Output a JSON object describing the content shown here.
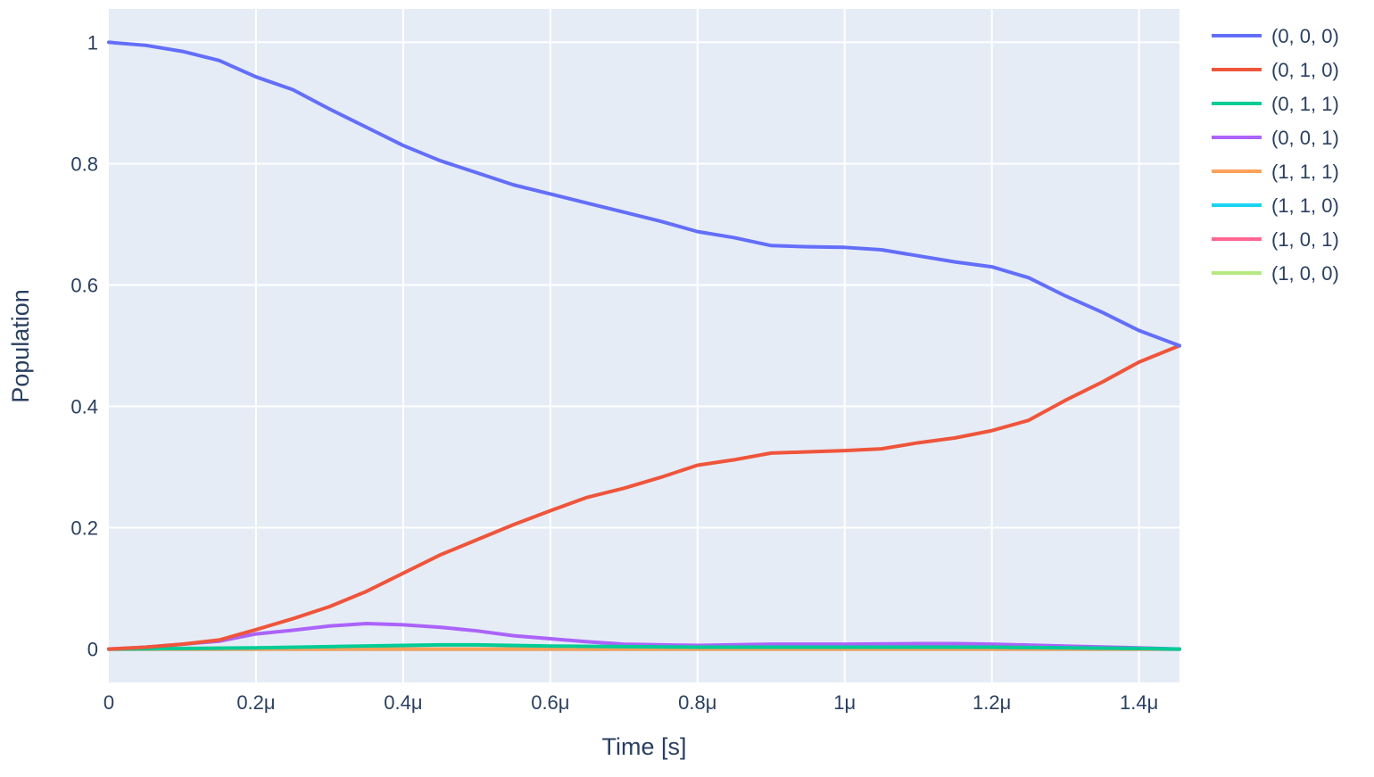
{
  "chart_data": {
    "type": "line",
    "title": "",
    "xlabel": "Time [s]",
    "ylabel": "Population",
    "xlim": [
      0,
      1.455
    ],
    "ylim": [
      -0.055,
      1.055
    ],
    "x_ticks": [
      0,
      0.2,
      0.4,
      0.6,
      0.8,
      1.0,
      1.2,
      1.4
    ],
    "x_tick_labels": [
      "0",
      "0.2μ",
      "0.4μ",
      "0.6μ",
      "0.8μ",
      "1μ",
      "1.2μ",
      "1.4μ"
    ],
    "y_ticks": [
      0,
      0.2,
      0.4,
      0.6,
      0.8,
      1.0
    ],
    "y_tick_labels": [
      "0",
      "0.2",
      "0.4",
      "0.6",
      "0.8",
      "1"
    ],
    "x_unit_note": "x values in microseconds",
    "grid": true,
    "legend_position": "right",
    "plot_background": "#e5ecf6",
    "series": [
      {
        "name": "(0, 0, 0)",
        "color": "#636efa",
        "x": [
          0,
          0.05,
          0.1,
          0.15,
          0.2,
          0.25,
          0.3,
          0.35,
          0.4,
          0.45,
          0.5,
          0.55,
          0.6,
          0.65,
          0.7,
          0.75,
          0.8,
          0.85,
          0.9,
          0.95,
          1.0,
          1.05,
          1.1,
          1.15,
          1.2,
          1.25,
          1.3,
          1.35,
          1.4,
          1.455
        ],
        "y": [
          1.0,
          0.995,
          0.985,
          0.97,
          0.943,
          0.922,
          0.89,
          0.86,
          0.83,
          0.805,
          0.785,
          0.765,
          0.75,
          0.735,
          0.72,
          0.705,
          0.688,
          0.678,
          0.665,
          0.663,
          0.662,
          0.658,
          0.648,
          0.638,
          0.63,
          0.612,
          0.582,
          0.555,
          0.525,
          0.5
        ]
      },
      {
        "name": "(0, 1, 0)",
        "color": "#ef553b",
        "x": [
          0,
          0.05,
          0.1,
          0.15,
          0.2,
          0.25,
          0.3,
          0.35,
          0.4,
          0.45,
          0.5,
          0.55,
          0.6,
          0.65,
          0.7,
          0.75,
          0.8,
          0.85,
          0.9,
          0.95,
          1.0,
          1.05,
          1.1,
          1.15,
          1.2,
          1.25,
          1.3,
          1.35,
          1.4,
          1.455
        ],
        "y": [
          0.0,
          0.003,
          0.008,
          0.015,
          0.032,
          0.05,
          0.07,
          0.095,
          0.125,
          0.155,
          0.18,
          0.205,
          0.228,
          0.25,
          0.265,
          0.283,
          0.303,
          0.312,
          0.323,
          0.325,
          0.327,
          0.33,
          0.34,
          0.348,
          0.36,
          0.377,
          0.41,
          0.44,
          0.473,
          0.5
        ]
      },
      {
        "name": "(0, 1, 1)",
        "color": "#00cc96",
        "x": [
          0,
          0.1,
          0.2,
          0.3,
          0.4,
          0.45,
          0.5,
          0.6,
          0.7,
          0.8,
          0.9,
          1.0,
          1.1,
          1.2,
          1.3,
          1.4,
          1.455
        ],
        "y": [
          0.0,
          0.001,
          0.002,
          0.004,
          0.006,
          0.007,
          0.007,
          0.005,
          0.004,
          0.003,
          0.003,
          0.003,
          0.003,
          0.003,
          0.002,
          0.001,
          0.0
        ]
      },
      {
        "name": "(0, 0, 1)",
        "color": "#ab63fa",
        "x": [
          0,
          0.05,
          0.1,
          0.15,
          0.2,
          0.25,
          0.3,
          0.35,
          0.4,
          0.45,
          0.5,
          0.55,
          0.6,
          0.65,
          0.7,
          0.8,
          0.9,
          1.0,
          1.1,
          1.15,
          1.2,
          1.3,
          1.4,
          1.455
        ],
        "y": [
          0.0,
          0.003,
          0.008,
          0.013,
          0.025,
          0.031,
          0.038,
          0.042,
          0.04,
          0.036,
          0.03,
          0.022,
          0.017,
          0.012,
          0.008,
          0.006,
          0.008,
          0.008,
          0.009,
          0.009,
          0.008,
          0.005,
          0.002,
          0.0
        ]
      },
      {
        "name": "(1, 1, 1)",
        "color": "#ffa15a",
        "x": [
          0,
          1.455
        ],
        "y": [
          0.0,
          0.0
        ]
      },
      {
        "name": "(1, 1, 0)",
        "color": "#19d3f3",
        "x": [
          0,
          1.455
        ],
        "y": [
          0.0,
          0.0
        ]
      },
      {
        "name": "(1, 0, 1)",
        "color": "#ff6692",
        "x": [
          0,
          1.455
        ],
        "y": [
          0.0,
          0.0
        ]
      },
      {
        "name": "(1, 0, 0)",
        "color": "#b6e880",
        "x": [
          0,
          1.455
        ],
        "y": [
          0.0,
          0.0
        ]
      }
    ]
  }
}
